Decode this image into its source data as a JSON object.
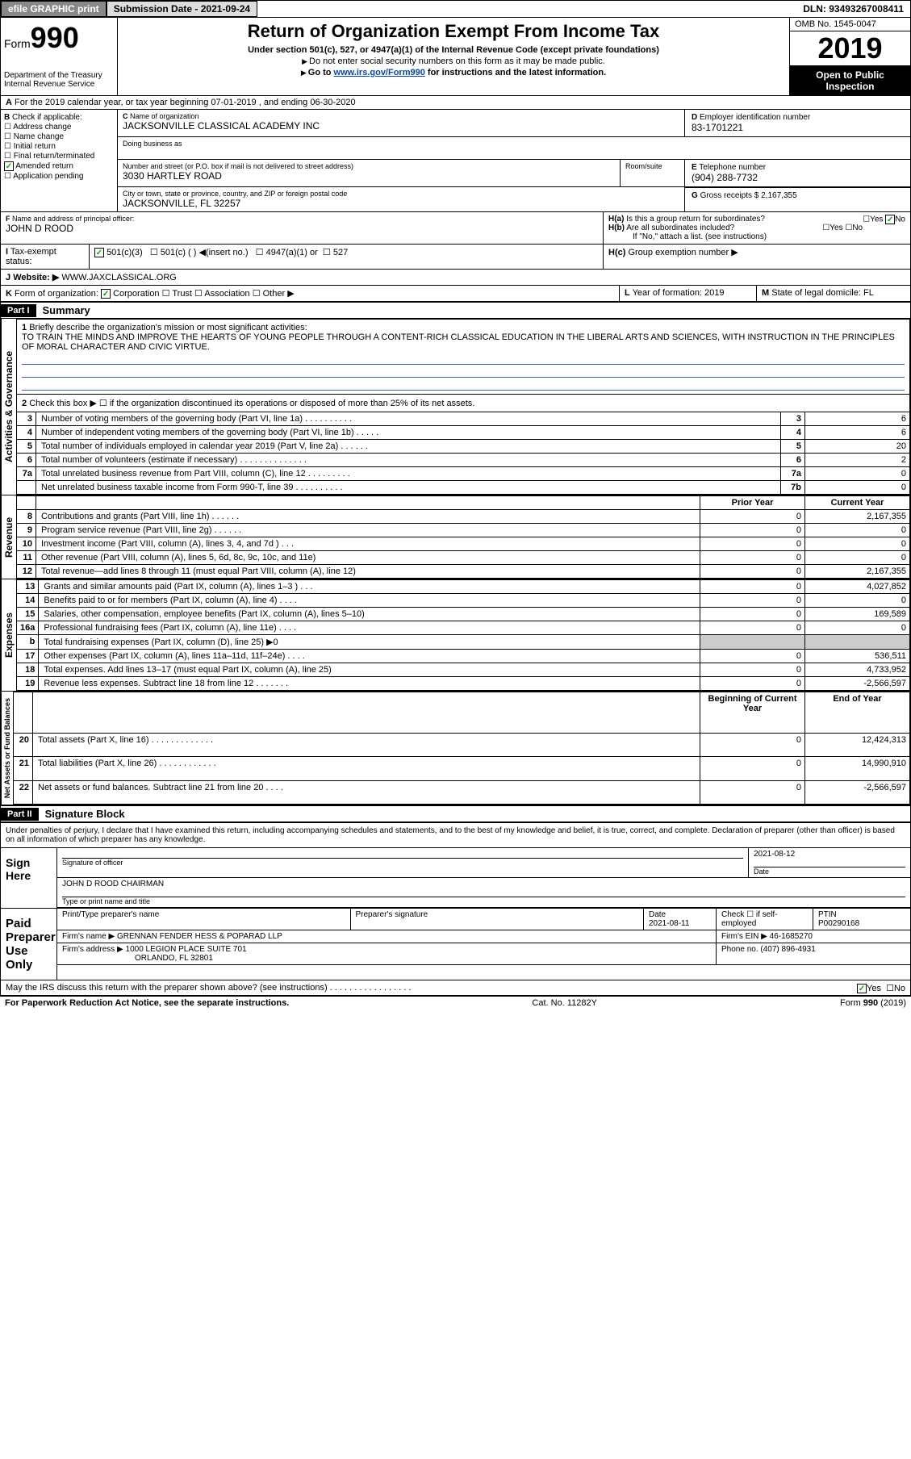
{
  "topbar": {
    "efile": "efile GRAPHIC print",
    "subdate_label": "Submission Date - ",
    "subdate": "2021-09-24",
    "dln_label": "DLN: ",
    "dln": "93493267008411"
  },
  "header": {
    "form_prefix": "Form",
    "form_num": "990",
    "dept": "Department of the Treasury\nInternal Revenue Service",
    "title": "Return of Organization Exempt From Income Tax",
    "subtitle": "Under section 501(c), 527, or 4947(a)(1) of the Internal Revenue Code (except private foundations)",
    "note1": "Do not enter social security numbers on this form as it may be made public.",
    "note2_pre": "Go to ",
    "note2_link": "www.irs.gov/Form990",
    "note2_post": " for instructions and the latest information.",
    "omb": "OMB No. 1545-0047",
    "year": "2019",
    "inspect": "Open to Public Inspection"
  },
  "rowA": {
    "text": "For the 2019 calendar year, or tax year beginning 07-01-2019    , and ending 06-30-2020"
  },
  "B": {
    "label": "Check if applicable:",
    "opts": [
      "Address change",
      "Name change",
      "Initial return",
      "Final return/terminated",
      "Amended return",
      "Application pending"
    ],
    "checked_idx": 4
  },
  "C": {
    "name_label": "Name of organization",
    "name": "JACKSONVILLE CLASSICAL ACADEMY INC",
    "dba_label": "Doing business as",
    "addr_label": "Number and street (or P.O. box if mail is not delivered to street address)",
    "room_label": "Room/suite",
    "addr": "3030 HARTLEY ROAD",
    "city_label": "City or town, state or province, country, and ZIP or foreign postal code",
    "city": "JACKSONVILLE, FL  32257"
  },
  "D": {
    "label": "Employer identification number",
    "val": "83-1701221"
  },
  "E": {
    "label": "Telephone number",
    "val": "(904) 288-7732"
  },
  "G": {
    "label": "Gross receipts $",
    "val": "2,167,355"
  },
  "F": {
    "label": "Name and address of principal officer:",
    "val": "JOHN D ROOD"
  },
  "H": {
    "a": "Is this a group return for subordinates?",
    "b": "Are all subordinates included?",
    "bnote": "If \"No,\" attach a list. (see instructions)",
    "c": "Group exemption number ▶",
    "yes": "Yes",
    "no": "No"
  },
  "I": {
    "label": "Tax-exempt status:",
    "o1": "501(c)(3)",
    "o2": "501(c) (  ) ◀(insert no.)",
    "o3": "4947(a)(1) or",
    "o4": "527"
  },
  "J": {
    "label": "Website: ▶",
    "val": "WWW.JAXCLASSICAL.ORG"
  },
  "K": {
    "label": "Form of organization:",
    "o1": "Corporation",
    "o2": "Trust",
    "o3": "Association",
    "o4": "Other ▶"
  },
  "L": {
    "label": "Year of formation:",
    "val": "2019"
  },
  "M": {
    "label": "State of legal domicile:",
    "val": "FL"
  },
  "part1": {
    "label": "Part I",
    "title": "Summary"
  },
  "mission": {
    "q": "Briefly describe the organization's mission or most significant activities:",
    "text": "TO TRAIN THE MINDS AND IMPROVE THE HEARTS OF YOUNG PEOPLE THROUGH A CONTENT-RICH CLASSICAL EDUCATION IN THE LIBERAL ARTS AND SCIENCES, WITH INSTRUCTION IN THE PRINCIPLES OF MORAL CHARACTER AND CIVIC VIRTUE."
  },
  "line2": "Check this box ▶ ☐  if the organization discontinued its operations or disposed of more than 25% of its net assets.",
  "vert": {
    "act": "Activities & Governance",
    "rev": "Revenue",
    "exp": "Expenses",
    "net": "Net Assets or Fund Balances"
  },
  "gov_rows": [
    {
      "n": "3",
      "t": "Number of voting members of the governing body (Part VI, line 1a)  .  .  .  .  .  .  .  .  .  .",
      "box": "3",
      "v": "6"
    },
    {
      "n": "4",
      "t": "Number of independent voting members of the governing body (Part VI, line 1b)  .  .  .  .  .",
      "box": "4",
      "v": "6"
    },
    {
      "n": "5",
      "t": "Total number of individuals employed in calendar year 2019 (Part V, line 2a)  .  .  .  .  .  .",
      "box": "5",
      "v": "20"
    },
    {
      "n": "6",
      "t": "Total number of volunteers (estimate if necessary)  .  .  .  .  .  .  .  .  .  .  .  .  .  .",
      "box": "6",
      "v": "2"
    },
    {
      "n": "7a",
      "t": "Total unrelated business revenue from Part VIII, column (C), line 12  .  .  .  .  .  .  .  .  .",
      "box": "7a",
      "v": "0"
    },
    {
      "n": "",
      "t": "Net unrelated business taxable income from Form 990-T, line 39  .  .  .  .  .  .  .  .  .  .",
      "box": "7b",
      "v": "0"
    }
  ],
  "cols": {
    "prior": "Prior Year",
    "current": "Current Year"
  },
  "rev_rows": [
    {
      "n": "8",
      "t": "Contributions and grants (Part VIII, line 1h)  .  .  .  .  .  .",
      "p": "0",
      "c": "2,167,355"
    },
    {
      "n": "9",
      "t": "Program service revenue (Part VIII, line 2g)  .  .  .  .  .  .",
      "p": "0",
      "c": "0"
    },
    {
      "n": "10",
      "t": "Investment income (Part VIII, column (A), lines 3, 4, and 7d )  .  .  .",
      "p": "0",
      "c": "0"
    },
    {
      "n": "11",
      "t": "Other revenue (Part VIII, column (A), lines 5, 6d, 8c, 9c, 10c, and 11e)",
      "p": "0",
      "c": "0"
    },
    {
      "n": "12",
      "t": "Total revenue—add lines 8 through 11 (must equal Part VIII, column (A), line 12)",
      "p": "0",
      "c": "2,167,355"
    }
  ],
  "exp_rows": [
    {
      "n": "13",
      "t": "Grants and similar amounts paid (Part IX, column (A), lines 1–3 )  .  .  .",
      "p": "0",
      "c": "4,027,852"
    },
    {
      "n": "14",
      "t": "Benefits paid to or for members (Part IX, column (A), line 4)  .  .  .  .",
      "p": "0",
      "c": "0"
    },
    {
      "n": "15",
      "t": "Salaries, other compensation, employee benefits (Part IX, column (A), lines 5–10)",
      "p": "0",
      "c": "169,589"
    },
    {
      "n": "16a",
      "t": "Professional fundraising fees (Part IX, column (A), line 11e)  .  .  .  .",
      "p": "0",
      "c": "0"
    },
    {
      "n": "b",
      "t": "Total fundraising expenses (Part IX, column (D), line 25) ▶0",
      "p": "",
      "c": "",
      "shade": true
    },
    {
      "n": "17",
      "t": "Other expenses (Part IX, column (A), lines 11a–11d, 11f–24e)  .  .  .  .",
      "p": "0",
      "c": "536,511"
    },
    {
      "n": "18",
      "t": "Total expenses. Add lines 13–17 (must equal Part IX, column (A), line 25)",
      "p": "0",
      "c": "4,733,952"
    },
    {
      "n": "19",
      "t": "Revenue less expenses. Subtract line 18 from line 12  .  .  .  .  .  .  .",
      "p": "0",
      "c": "-2,566,597"
    }
  ],
  "net_cols": {
    "beg": "Beginning of Current Year",
    "end": "End of Year"
  },
  "net_rows": [
    {
      "n": "20",
      "t": "Total assets (Part X, line 16)  .  .  .  .  .  .  .  .  .  .  .  .  .",
      "p": "0",
      "c": "12,424,313"
    },
    {
      "n": "21",
      "t": "Total liabilities (Part X, line 26)  .  .  .  .  .  .  .  .  .  .  .  .",
      "p": "0",
      "c": "14,990,910"
    },
    {
      "n": "22",
      "t": "Net assets or fund balances. Subtract line 21 from line 20  .  .  .  .",
      "p": "0",
      "c": "-2,566,597"
    }
  ],
  "part2": {
    "label": "Part II",
    "title": "Signature Block"
  },
  "sig": {
    "declare": "Under penalties of perjury, I declare that I have examined this return, including accompanying schedules and statements, and to the best of my knowledge and belief, it is true, correct, and complete. Declaration of preparer (other than officer) is based on all information of which preparer has any knowledge.",
    "here": "Sign Here",
    "sig_officer": "Signature of officer",
    "date": "Date",
    "date_val": "2021-08-12",
    "name": "JOHN D ROOD  CHAIRMAN",
    "name_label": "Type or print name and title",
    "paid": "Paid Preparer Use Only",
    "prep_name_label": "Print/Type preparer's name",
    "prep_sig_label": "Preparer's signature",
    "prep_date": "2021-08-11",
    "check_self": "Check ☐ if self-employed",
    "ptin_label": "PTIN",
    "ptin": "P00290168",
    "firm_label": "Firm's name    ▶",
    "firm": "GRENNAN FENDER HESS & POPARAD LLP",
    "ein_label": "Firm's EIN ▶",
    "ein": "46-1685270",
    "addr_label": "Firm's address ▶",
    "addr": "1000 LEGION PLACE SUITE 701",
    "addr2": "ORLANDO, FL  32801",
    "phone_label": "Phone no.",
    "phone": "(407) 896-4931",
    "discuss": "May the IRS discuss this return with the preparer shown above? (see instructions)  .  .  .  .  .  .  .  .  .  .  .  .  .  .  .  .  ."
  },
  "footer": {
    "paperwork": "For Paperwork Reduction Act Notice, see the separate instructions.",
    "cat": "Cat. No. 11282Y",
    "form": "Form 990 (2019)"
  }
}
